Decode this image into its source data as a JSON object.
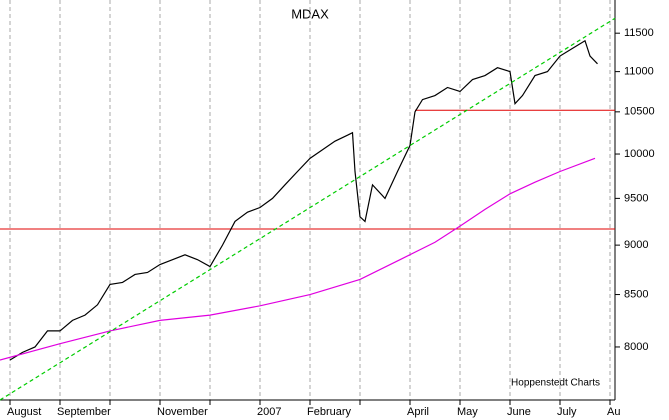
{
  "chart_data": {
    "type": "line",
    "title": "MDAX",
    "annotation": "Hoppenstedt Charts",
    "ylog": true,
    "ylim": [
      7524,
      11950
    ],
    "yticks": [
      8000,
      8500,
      9000,
      9500,
      10000,
      10500,
      11000,
      11500
    ],
    "xlim": [
      -0.2,
      12.1
    ],
    "xticks": [
      {
        "value": 0,
        "label": "August"
      },
      {
        "value": 1,
        "label": "September"
      },
      {
        "value": 2,
        "label": null
      },
      {
        "value": 3,
        "label": "November"
      },
      {
        "value": 4,
        "label": null
      },
      {
        "value": 5,
        "label": "2007"
      },
      {
        "value": 6,
        "label": "February"
      },
      {
        "value": 7,
        "label": null
      },
      {
        "value": 8,
        "label": "April"
      },
      {
        "value": 9,
        "label": "May"
      },
      {
        "value": 10,
        "label": "June"
      },
      {
        "value": 11,
        "label": "July"
      },
      {
        "value": 12,
        "label": "Au"
      }
    ],
    "xgrid": true,
    "grid_color": "#aaaaaa",
    "series": [
      {
        "color": "#000000",
        "dash": false,
        "x": [
          0,
          0.25,
          0.5,
          0.75,
          1,
          1.25,
          1.5,
          1.75,
          2,
          2.25,
          2.5,
          2.75,
          3,
          3.25,
          3.5,
          3.75,
          4,
          4.25,
          4.5,
          4.75,
          5,
          5.25,
          5.5,
          5.75,
          6,
          6.25,
          6.5,
          6.75,
          6.85,
          6.9,
          7,
          7.1,
          7.25,
          7.5,
          7.75,
          8,
          8.1,
          8.25,
          8.5,
          8.75,
          9,
          9.25,
          9.5,
          9.75,
          10,
          10.1,
          10.25,
          10.5,
          10.75,
          11,
          11.25,
          11.5,
          11.6,
          11.75
        ],
        "values": [
          7880,
          7950,
          8000,
          8150,
          8150,
          8250,
          8300,
          8400,
          8600,
          8620,
          8700,
          8720,
          8800,
          8850,
          8900,
          8850,
          8780,
          9000,
          9250,
          9350,
          9400,
          9500,
          9650,
          9800,
          9950,
          10050,
          10150,
          10220,
          10250,
          9800,
          9300,
          9250,
          9650,
          9500,
          9800,
          10100,
          10500,
          10650,
          10700,
          10800,
          10750,
          10900,
          10950,
          11050,
          11000,
          10600,
          10700,
          10950,
          11000,
          11200,
          11300,
          11400,
          11200,
          11100
        ]
      },
      {
        "color": "#e000e0",
        "dash": false,
        "x": [
          -0.2,
          1,
          2,
          3,
          4,
          5,
          6,
          7,
          7.8,
          8.5,
          9,
          9.5,
          10,
          10.5,
          11,
          11.7
        ],
        "values": [
          7880,
          8030,
          8150,
          8250,
          8300,
          8390,
          8500,
          8650,
          8850,
          9030,
          9200,
          9380,
          9550,
          9680,
          9800,
          9950
        ]
      },
      {
        "color": "#00cc00",
        "dash": true,
        "x": [
          -0.2,
          12.1
        ],
        "values": [
          7524,
          11700
        ]
      }
    ],
    "levels": [
      {
        "value": 9170,
        "from": -0.2,
        "color": "#e00000"
      },
      {
        "value": 10520,
        "from": 8.1,
        "color": "#e00000"
      }
    ]
  }
}
